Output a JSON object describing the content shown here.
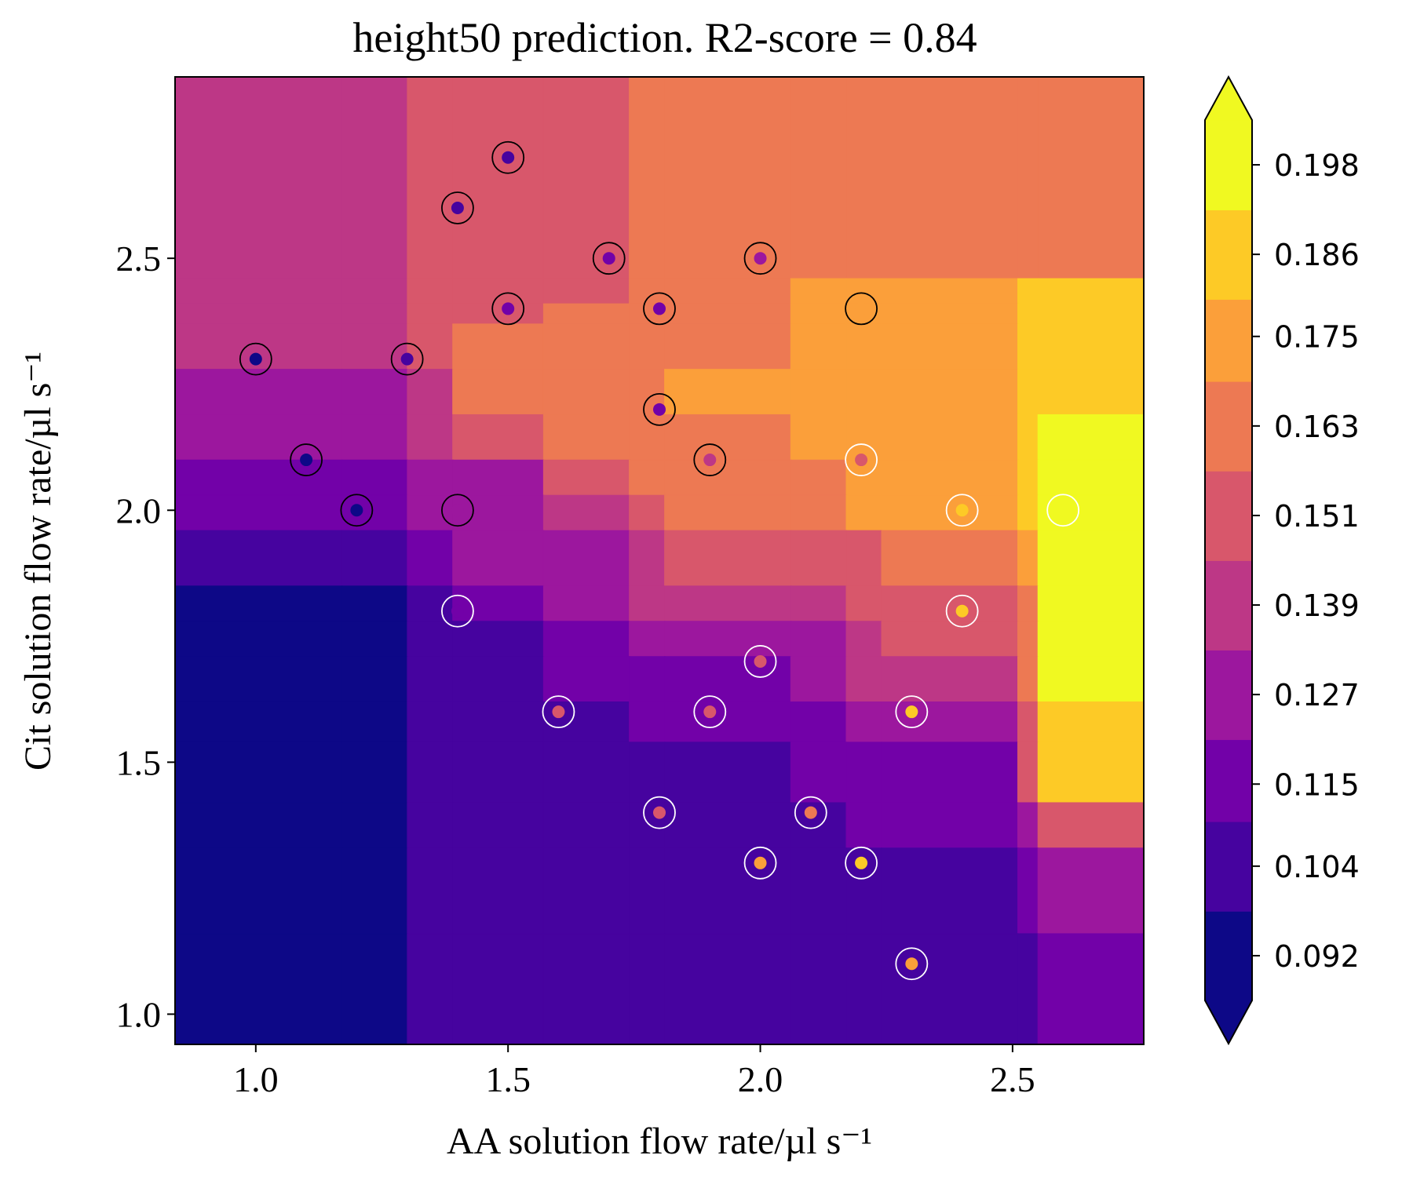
{
  "chart_data": {
    "type": "heatmap",
    "subtype": "filled-contour",
    "title": "height50 prediction. R2-score = 0.84",
    "xlabel": "AA solution flow rate/µl s⁻¹",
    "ylabel": "Cit solution flow rate/µl s⁻¹",
    "xlim": [
      0.84,
      2.76
    ],
    "ylim": [
      0.94,
      2.86
    ],
    "xticks": [
      {
        "value": 1.0,
        "label": "1.0"
      },
      {
        "value": 1.5,
        "label": "1.5"
      },
      {
        "value": 2.0,
        "label": "2.0"
      },
      {
        "value": 2.5,
        "label": "2.5"
      }
    ],
    "yticks": [
      {
        "value": 1.0,
        "label": "1.0"
      },
      {
        "value": 1.5,
        "label": "1.5"
      },
      {
        "value": 2.0,
        "label": "2.0"
      },
      {
        "value": 2.5,
        "label": "2.5"
      }
    ],
    "colorbar": {
      "levels": [
        0.086,
        0.098,
        0.11,
        0.121,
        0.133,
        0.145,
        0.157,
        0.169,
        0.18,
        0.192,
        0.204
      ],
      "colors": [
        "#0d0887",
        "#46039f",
        "#7201a8",
        "#9c179e",
        "#bd3786",
        "#d8576b",
        "#ed7953",
        "#fb9f3a",
        "#fdca26",
        "#f0f921"
      ],
      "ticks": [
        {
          "value": 0.092,
          "label": "0.092"
        },
        {
          "value": 0.104,
          "label": "0.104"
        },
        {
          "value": 0.115,
          "label": "0.115"
        },
        {
          "value": 0.127,
          "label": "0.127"
        },
        {
          "value": 0.139,
          "label": "0.139"
        },
        {
          "value": 0.151,
          "label": "0.151"
        },
        {
          "value": 0.163,
          "label": "0.163"
        },
        {
          "value": 0.175,
          "label": "0.175"
        },
        {
          "value": 0.186,
          "label": "0.186"
        },
        {
          "value": 0.198,
          "label": "0.198"
        }
      ],
      "extend": "both",
      "over_color": "#f0f921",
      "under_color": "#0d0887"
    },
    "x_breaks": [
      1.17,
      1.3,
      1.39,
      1.57,
      1.74,
      1.81,
      2.06,
      2.17,
      2.24,
      2.51,
      2.55
    ],
    "y_breaks": [
      1.16,
      1.33,
      1.42,
      1.54,
      1.62,
      1.71,
      1.78,
      1.85,
      1.96,
      2.03,
      2.1,
      2.19,
      2.28,
      2.37,
      2.41,
      2.46
    ],
    "grid_levels": [
      [
        4,
        4,
        5,
        5,
        5,
        6,
        6,
        6,
        6,
        6,
        6,
        6
      ],
      [
        4,
        4,
        5,
        5,
        5,
        6,
        6,
        7,
        7,
        7,
        8,
        8
      ],
      [
        4,
        4,
        5,
        5,
        6,
        6,
        6,
        7,
        7,
        7,
        8,
        8
      ],
      [
        4,
        4,
        5,
        6,
        6,
        6,
        6,
        7,
        7,
        7,
        8,
        8
      ],
      [
        3,
        3,
        4,
        6,
        6,
        6,
        7,
        7,
        7,
        7,
        8,
        8
      ],
      [
        3,
        3,
        4,
        5,
        6,
        6,
        6,
        7,
        7,
        7,
        8,
        9
      ],
      [
        2,
        2,
        3,
        3,
        5,
        6,
        6,
        6,
        7,
        7,
        8,
        9
      ],
      [
        2,
        2,
        3,
        3,
        4,
        5,
        6,
        6,
        7,
        7,
        8,
        9
      ],
      [
        1,
        1,
        2,
        3,
        3,
        4,
        5,
        5,
        5,
        6,
        7,
        9
      ],
      [
        0,
        0,
        1,
        2,
        3,
        4,
        4,
        4,
        5,
        5,
        6,
        9
      ],
      [
        0,
        0,
        1,
        1,
        2,
        3,
        3,
        3,
        4,
        5,
        6,
        9
      ],
      [
        0,
        0,
        1,
        1,
        2,
        2,
        2,
        3,
        4,
        4,
        6,
        9
      ],
      [
        0,
        0,
        1,
        1,
        1,
        2,
        2,
        2,
        3,
        3,
        5,
        8
      ],
      [
        0,
        0,
        1,
        1,
        1,
        1,
        1,
        2,
        2,
        2,
        5,
        8
      ],
      [
        0,
        0,
        1,
        1,
        1,
        1,
        1,
        1,
        2,
        2,
        3,
        5
      ],
      [
        0,
        0,
        1,
        1,
        1,
        1,
        1,
        1,
        1,
        1,
        2,
        3
      ],
      [
        0,
        0,
        1,
        1,
        1,
        1,
        1,
        1,
        1,
        1,
        1,
        2
      ]
    ],
    "points": [
      {
        "x": 1.5,
        "y": 2.7,
        "level": 1,
        "ring": "black"
      },
      {
        "x": 1.4,
        "y": 2.6,
        "level": 1,
        "ring": "black"
      },
      {
        "x": 1.7,
        "y": 2.5,
        "level": 2,
        "ring": "black"
      },
      {
        "x": 2.0,
        "y": 2.5,
        "level": 3,
        "ring": "black"
      },
      {
        "x": 1.5,
        "y": 2.4,
        "level": 2,
        "ring": "black"
      },
      {
        "x": 1.8,
        "y": 2.4,
        "level": 2,
        "ring": "black"
      },
      {
        "x": 2.2,
        "y": 2.4,
        "level": 7,
        "ring": "black"
      },
      {
        "x": 1.0,
        "y": 2.3,
        "level": 0,
        "ring": "black"
      },
      {
        "x": 1.3,
        "y": 2.3,
        "level": 1,
        "ring": "black"
      },
      {
        "x": 1.8,
        "y": 2.2,
        "level": 2,
        "ring": "black"
      },
      {
        "x": 1.1,
        "y": 2.1,
        "level": 0,
        "ring": "black"
      },
      {
        "x": 1.9,
        "y": 2.1,
        "level": 4,
        "ring": "black"
      },
      {
        "x": 2.2,
        "y": 2.1,
        "level": 5,
        "ring": "white"
      },
      {
        "x": 1.2,
        "y": 2.0,
        "level": 0,
        "ring": "black"
      },
      {
        "x": 1.4,
        "y": 2.0,
        "level": 3,
        "ring": "black"
      },
      {
        "x": 2.4,
        "y": 2.0,
        "level": 8,
        "ring": "white"
      },
      {
        "x": 2.6,
        "y": 2.0,
        "level": 9,
        "ring": "white"
      },
      {
        "x": 1.4,
        "y": 1.8,
        "level": 2,
        "ring": "white"
      },
      {
        "x": 2.4,
        "y": 1.8,
        "level": 8,
        "ring": "white"
      },
      {
        "x": 2.0,
        "y": 1.7,
        "level": 5,
        "ring": "white"
      },
      {
        "x": 1.6,
        "y": 1.6,
        "level": 5,
        "ring": "white"
      },
      {
        "x": 1.9,
        "y": 1.6,
        "level": 5,
        "ring": "white"
      },
      {
        "x": 2.3,
        "y": 1.6,
        "level": 8,
        "ring": "white"
      },
      {
        "x": 1.8,
        "y": 1.4,
        "level": 5,
        "ring": "white"
      },
      {
        "x": 2.1,
        "y": 1.4,
        "level": 6,
        "ring": "white"
      },
      {
        "x": 2.0,
        "y": 1.3,
        "level": 7,
        "ring": "white"
      },
      {
        "x": 2.2,
        "y": 1.3,
        "level": 8,
        "ring": "white"
      },
      {
        "x": 2.3,
        "y": 1.1,
        "level": 7,
        "ring": "white"
      }
    ]
  }
}
